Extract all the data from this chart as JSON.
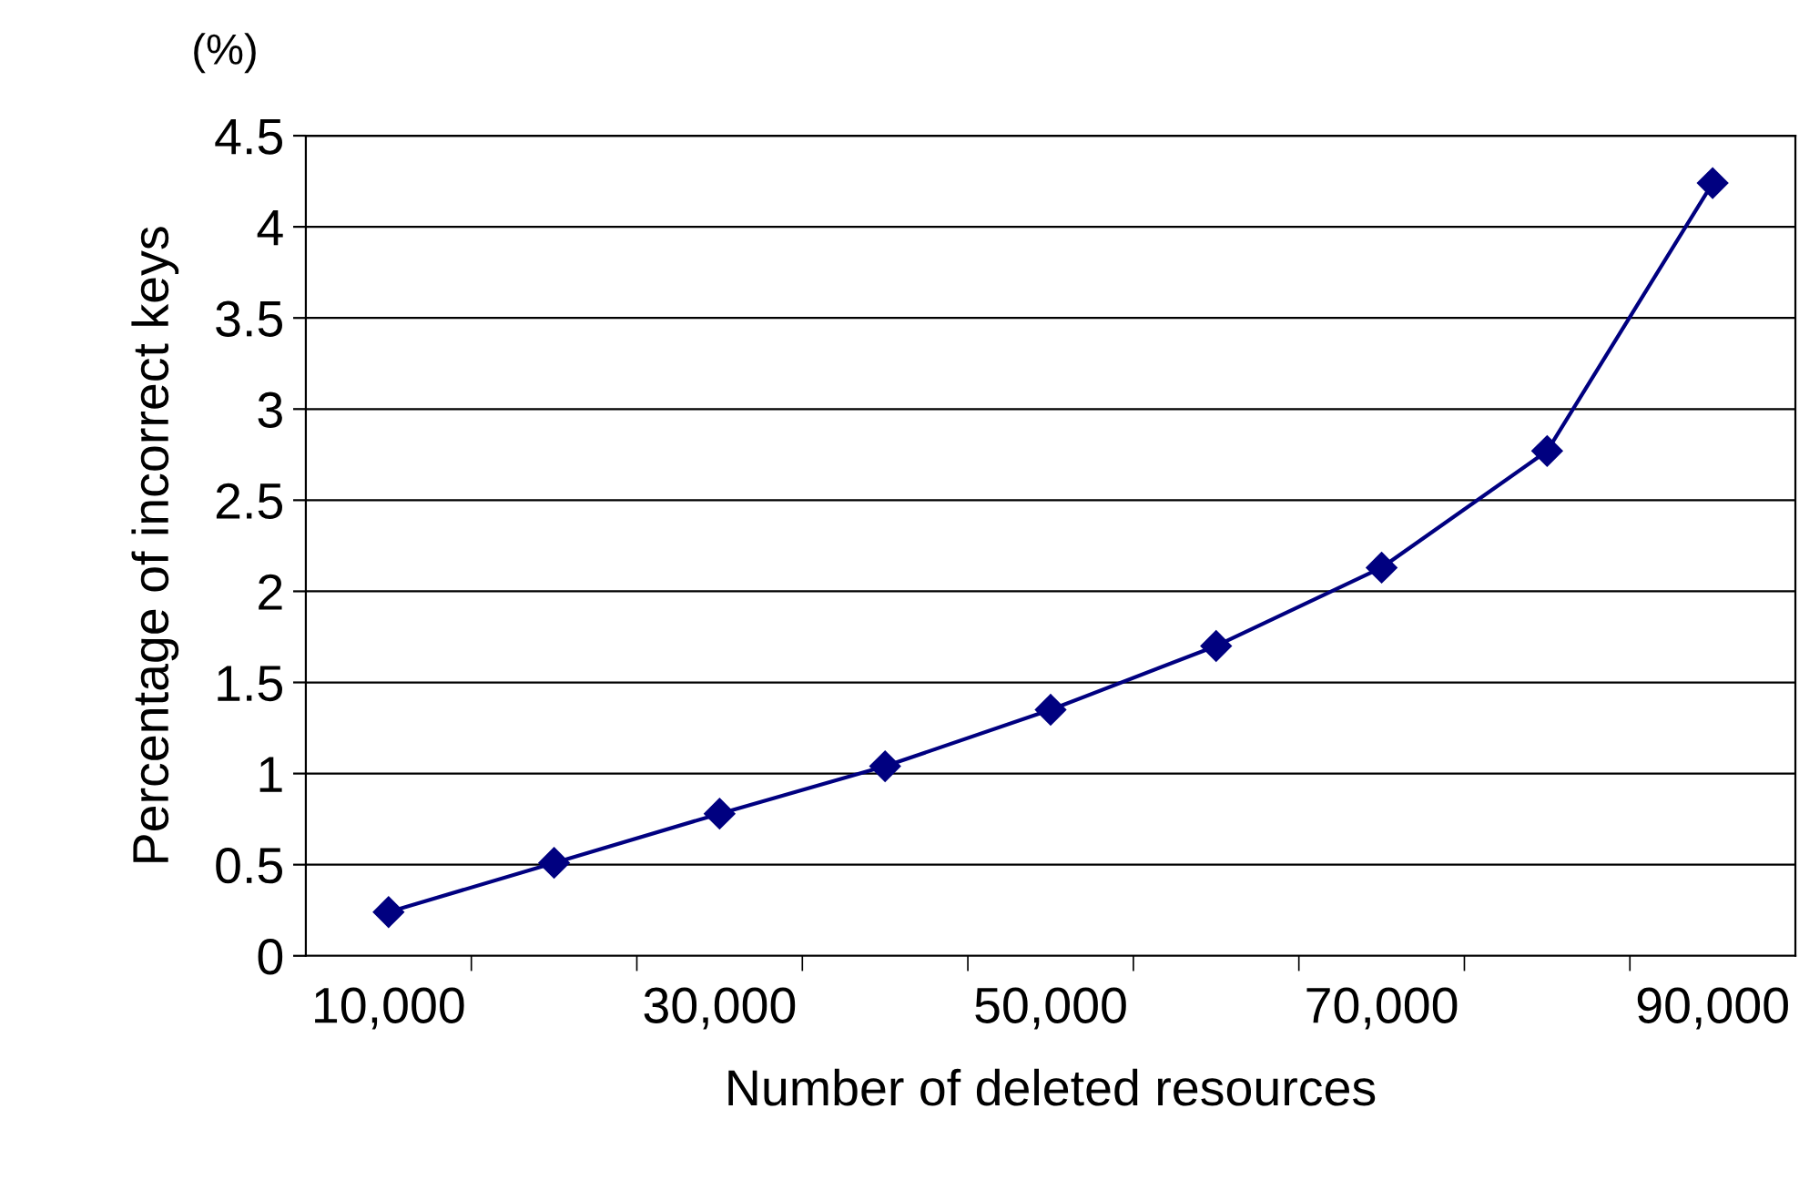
{
  "chart_data": {
    "type": "line",
    "xlabel": "Number of deleted resources",
    "ylabel": "Percentage of incorrect keys",
    "annotations": [
      "(%)"
    ],
    "categories": [
      "10,000",
      null,
      "30,000",
      null,
      "50,000",
      null,
      "70,000",
      null,
      "90,000"
    ],
    "series": [
      {
        "color": "#000080",
        "values": [
          0.24,
          0.51,
          0.78,
          1.04,
          1.35,
          1.7,
          2.13,
          2.77,
          4.24
        ]
      }
    ],
    "ylim": [
      0,
      4.5
    ],
    "yticks": [
      0,
      0.5,
      1,
      1.5,
      2,
      2.5,
      3,
      3.5,
      4,
      4.5
    ],
    "grid": "y",
    "marker": "diamond",
    "line_style": "solid"
  }
}
